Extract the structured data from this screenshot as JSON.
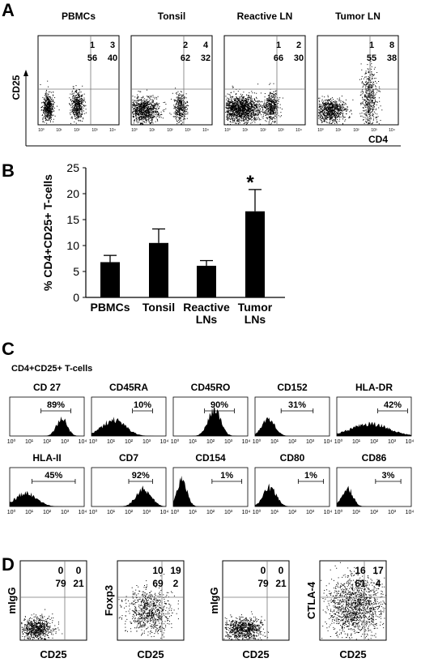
{
  "panels": {
    "A": {
      "letter": "A",
      "y_axis_label": "CD25",
      "x_axis_label": "CD4",
      "plots": [
        {
          "title": "PBMCs",
          "q": [
            "1",
            "3",
            "56",
            "40"
          ]
        },
        {
          "title": "Tonsil",
          "q": [
            "2",
            "4",
            "62",
            "32"
          ]
        },
        {
          "title": "Reactive LN",
          "q": [
            "1",
            "2",
            "66",
            "30"
          ]
        },
        {
          "title": "Tumor LN",
          "q": [
            "1",
            "8",
            "55",
            "38"
          ]
        }
      ]
    },
    "B": {
      "letter": "B",
      "significance_mark": "*"
    },
    "C": {
      "letter": "C",
      "subtitle": "CD4+CD25+ T-cells",
      "histograms": [
        {
          "marker": "CD 27",
          "pct": "89%"
        },
        {
          "marker": "CD45RA",
          "pct": "10%"
        },
        {
          "marker": "CD45RO",
          "pct": "90%"
        },
        {
          "marker": "CD152",
          "pct": "31%"
        },
        {
          "marker": "HLA-DR",
          "pct": "42%"
        },
        {
          "marker": "HLA-II",
          "pct": "45%"
        },
        {
          "marker": "CD7",
          "pct": "92%"
        },
        {
          "marker": "CD154",
          "pct": "1%"
        },
        {
          "marker": "CD80",
          "pct": "1%"
        },
        {
          "marker": "CD86",
          "pct": "3%"
        }
      ],
      "tick_labels": [
        "10⁰",
        "10¹",
        "10²",
        "10³",
        "10⁴"
      ]
    },
    "D": {
      "letter": "D",
      "x_axis_label": "CD25",
      "plots": [
        {
          "ylabel": "mIgG",
          "q": [
            "0",
            "0",
            "79",
            "21"
          ]
        },
        {
          "ylabel": "Foxp3",
          "q": [
            "10",
            "19",
            "69",
            "2"
          ]
        },
        {
          "ylabel": "mIgG",
          "q": [
            "0",
            "0",
            "79",
            "21"
          ]
        },
        {
          "ylabel": "CTLA-4",
          "q": [
            "16",
            "17",
            "61",
            "4"
          ]
        }
      ]
    }
  },
  "chart_data": {
    "type": "bar",
    "categories": [
      "PBMCs",
      "Tonsil",
      "Reactive LNs",
      "Tumor LNs"
    ],
    "values": [
      6.8,
      10.5,
      6.1,
      16.6
    ],
    "errors": [
      1.3,
      2.7,
      1.0,
      4.2
    ],
    "ylabel": "% CD4+CD25+ T-cells",
    "ylim": [
      0,
      25
    ],
    "yticks": [
      0,
      5,
      10,
      15,
      20,
      25
    ],
    "bar_color": "#000000"
  }
}
